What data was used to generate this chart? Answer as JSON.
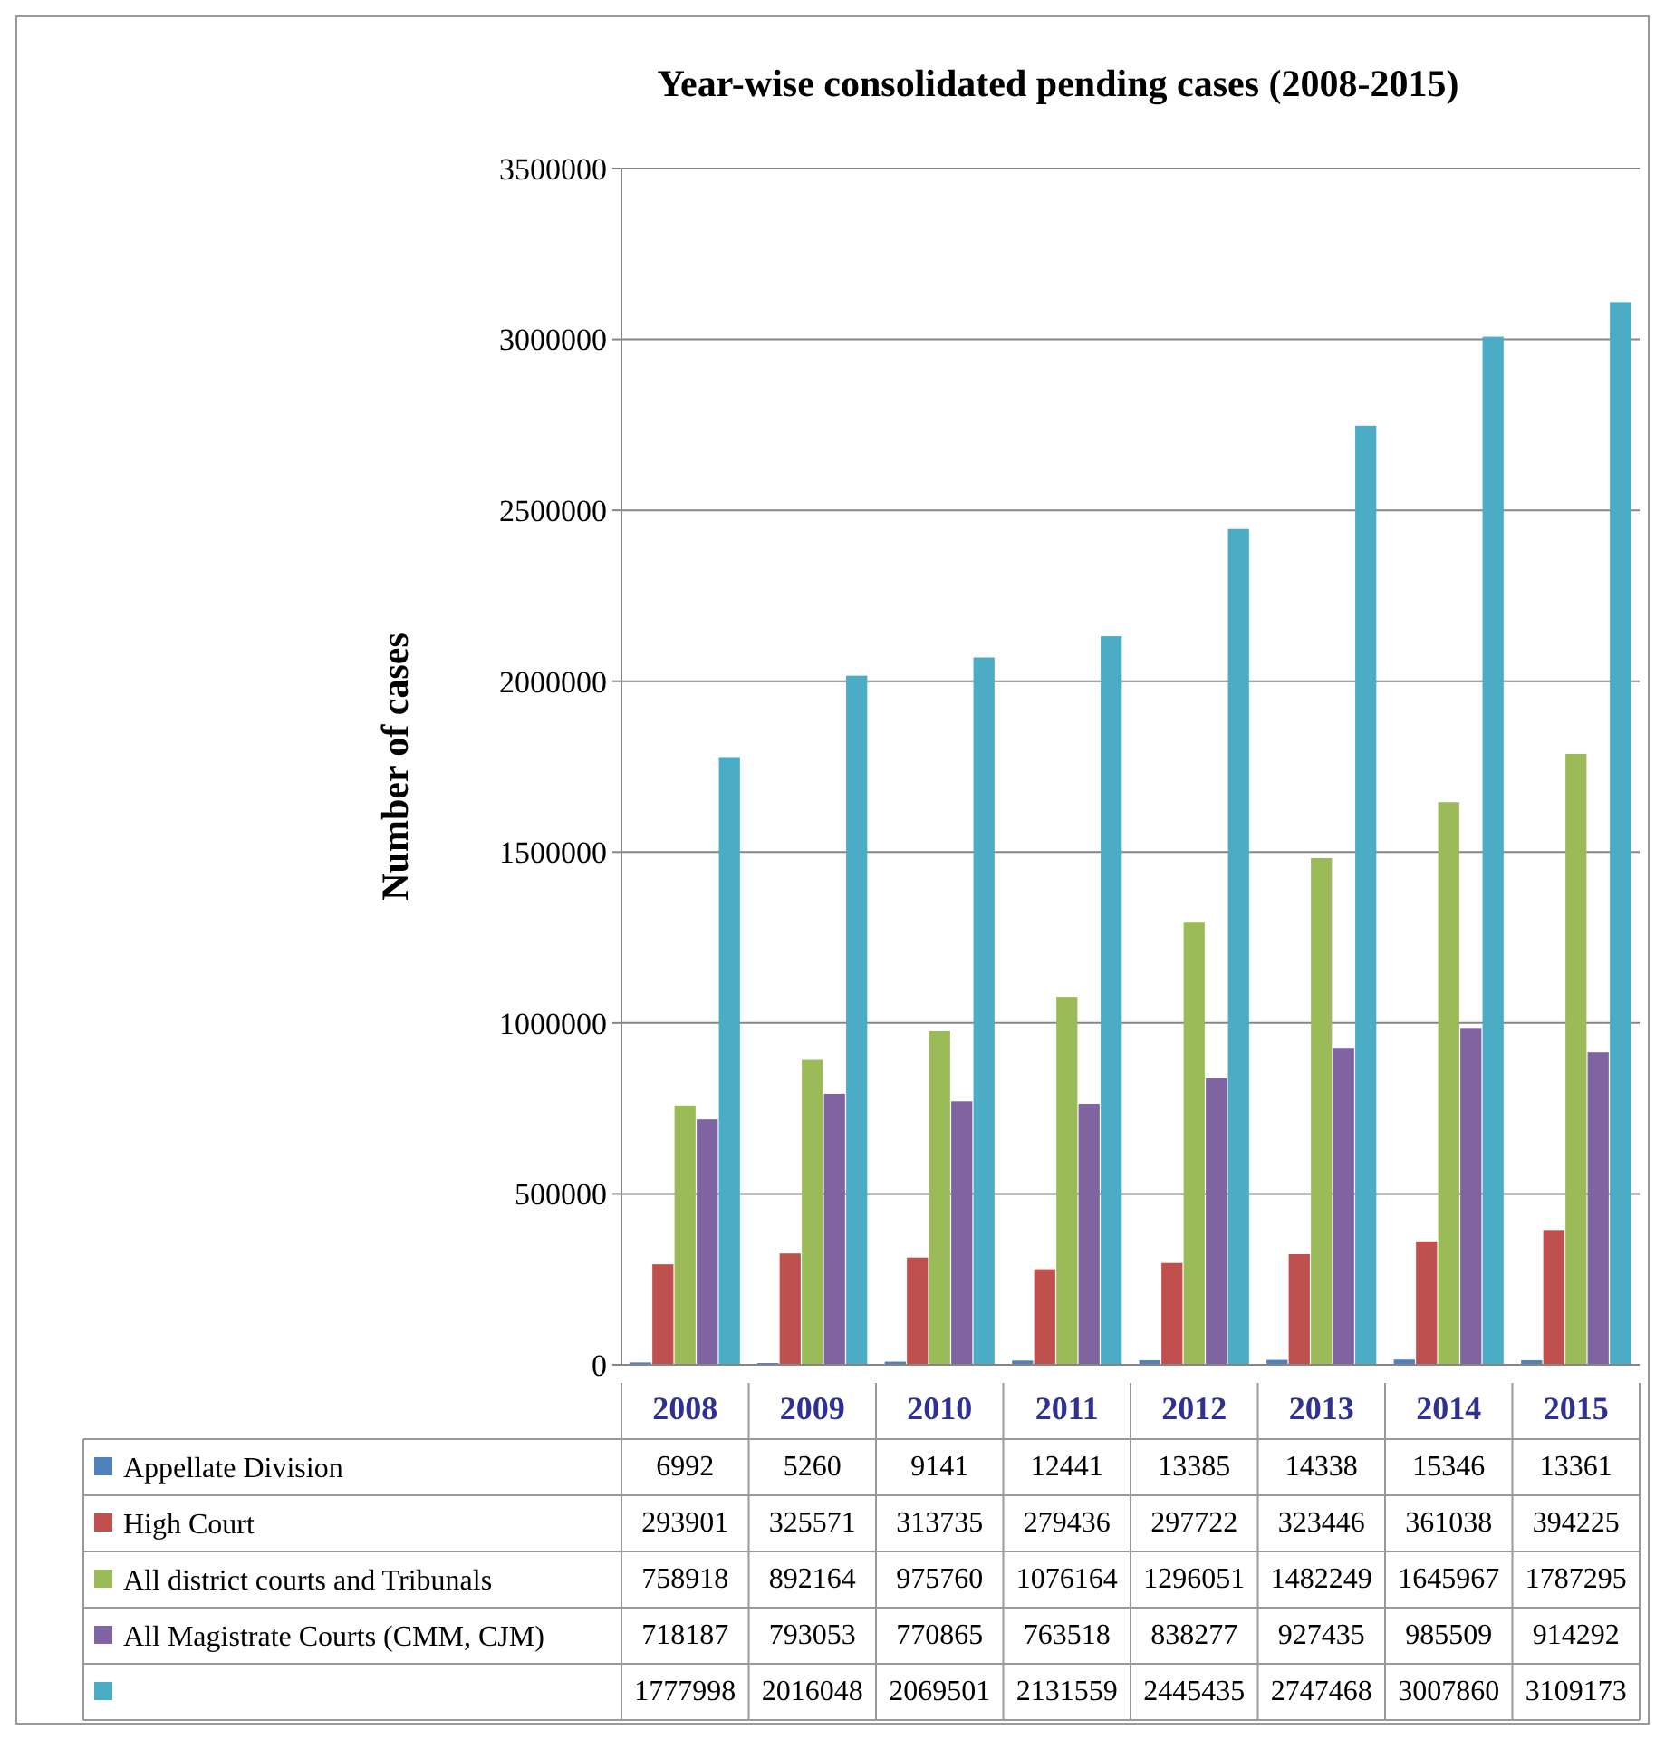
{
  "chart_data": {
    "type": "bar",
    "title": "Year-wise consolidated pending cases (2008-2015)",
    "ylabel": "Number of cases",
    "categories": [
      "2008",
      "2009",
      "2010",
      "2011",
      "2012",
      "2013",
      "2014",
      "2015"
    ],
    "series": [
      {
        "name": "Appellate Division",
        "color": "#4f81bd",
        "values": [
          6992,
          5260,
          9141,
          12441,
          13385,
          14338,
          15346,
          13361
        ]
      },
      {
        "name": "High Court",
        "color": "#c0504d",
        "values": [
          293901,
          325571,
          313735,
          279436,
          297722,
          323446,
          361038,
          394225
        ]
      },
      {
        "name": "All district courts and Tribunals",
        "color": "#9bbb59",
        "values": [
          758918,
          892164,
          975760,
          1076164,
          1296051,
          1482249,
          1645967,
          1787295
        ]
      },
      {
        "name": "All Magistrate Courts (CMM, CJM)",
        "color": "#8064a2",
        "values": [
          718187,
          793053,
          770865,
          763518,
          838277,
          927435,
          985509,
          914292
        ]
      },
      {
        "color": "#4bacc6",
        "values": [
          1777998,
          2016048,
          2069501,
          2131559,
          2445435,
          2747468,
          3007860,
          3109173
        ]
      }
    ],
    "ylim": [
      0,
      3500000
    ],
    "yticks": [
      0,
      500000,
      1000000,
      1500000,
      2000000,
      2500000,
      3000000,
      3500000
    ],
    "grid": "y",
    "data_labels": true,
    "legend": "bottom"
  }
}
